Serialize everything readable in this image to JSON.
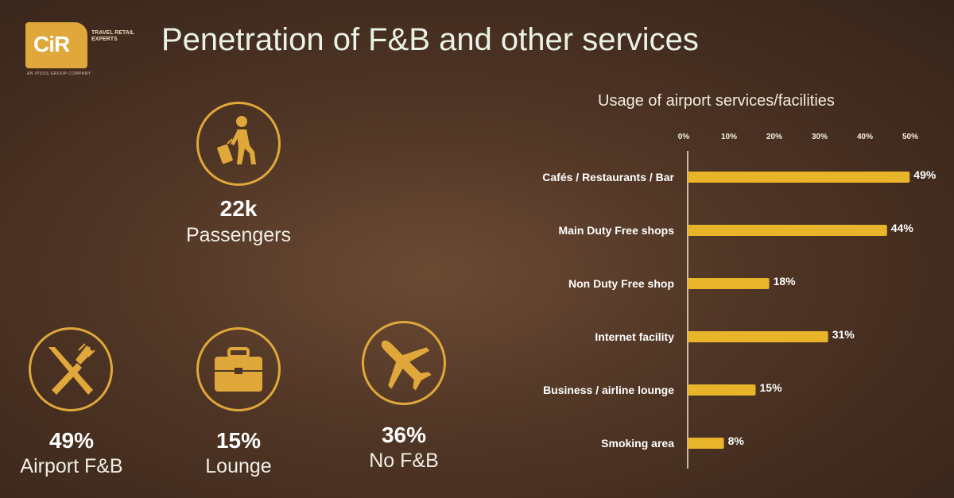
{
  "logo": {
    "text": "CiR",
    "tagline": "TRAVEL RETAIL EXPERTS",
    "subline": "AN IPSOS GROUP COMPANY"
  },
  "title": "Penetration of F&B and other services",
  "stats": [
    {
      "id": "passengers",
      "value": "22k",
      "label": "Passengers",
      "icon": "traveler-luggage-icon"
    },
    {
      "id": "airport-fb",
      "value": "49%",
      "label": "Airport F&B",
      "icon": "fork-knife-icon"
    },
    {
      "id": "lounge",
      "value": "15%",
      "label": "Lounge",
      "icon": "briefcase-icon"
    },
    {
      "id": "no-fb",
      "value": "36%",
      "label": "No F&B",
      "icon": "airplane-icon"
    }
  ],
  "colors": {
    "accent": "#e0a73a",
    "bar": "#e8b42a"
  },
  "chart_data": {
    "type": "bar",
    "orientation": "horizontal",
    "title": "Usage of airport services/facilities",
    "categories": [
      "Cafés / Restaurants / Bar",
      "Main Duty Free shops",
      "Non Duty Free shop",
      "Internet facility",
      "Business / airline lounge",
      "Smoking area"
    ],
    "values": [
      49,
      44,
      18,
      31,
      15,
      8
    ],
    "value_labels": [
      "49%",
      "44%",
      "18%",
      "31%",
      "15%",
      "8%"
    ],
    "xlim": [
      0,
      50
    ],
    "xticks": [
      0,
      10,
      20,
      30,
      40,
      50
    ],
    "xtick_labels": [
      "0%",
      "10%",
      "20%",
      "30%",
      "40%",
      "50%"
    ],
    "axis_position": "top",
    "grid": false,
    "legend": "none"
  }
}
